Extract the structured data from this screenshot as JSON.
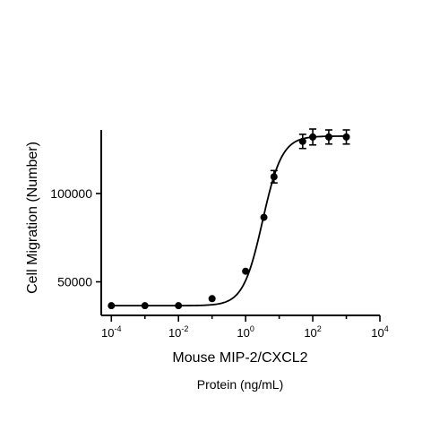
{
  "chart_data": {
    "type": "scatter",
    "title": "Mouse MIP-2/CXCL2",
    "xlabel": "Protein (ng/mL)",
    "ylabel": "Cell Migration (Number)",
    "x_scale": "log10",
    "xlim": [
      5e-05,
      10000
    ],
    "ylim": [
      31000,
      136000
    ],
    "x_ticks": [
      {
        "value": 0.0001,
        "base": "10",
        "exp": "-4"
      },
      {
        "value": 0.01,
        "base": "10",
        "exp": "-2"
      },
      {
        "value": 1,
        "base": "10",
        "exp": "0"
      },
      {
        "value": 100,
        "base": "10",
        "exp": "2"
      },
      {
        "value": 10000,
        "base": "10",
        "exp": "4"
      }
    ],
    "y_ticks": [
      {
        "value": 50000,
        "label": "50000"
      },
      {
        "value": 100000,
        "label": "100000"
      }
    ],
    "points": [
      {
        "x": 0.0001,
        "y": 36500,
        "err": 0
      },
      {
        "x": 0.001,
        "y": 36500,
        "err": 0
      },
      {
        "x": 0.01,
        "y": 36500,
        "err": 0
      },
      {
        "x": 0.1,
        "y": 40500,
        "err": 0
      },
      {
        "x": 1,
        "y": 56000,
        "err": 0
      },
      {
        "x": 3.5,
        "y": 86500,
        "err": 0
      },
      {
        "x": 7,
        "y": 109500,
        "err": 3500
      },
      {
        "x": 50,
        "y": 129500,
        "err": 4000
      },
      {
        "x": 100,
        "y": 132000,
        "err": 4500
      },
      {
        "x": 300,
        "y": 132000,
        "err": 4000
      },
      {
        "x": 1000,
        "y": 132000,
        "err": 4000
      }
    ],
    "fit": {
      "bottom": 36500,
      "top": 132500,
      "ec50": 3.2,
      "hill": 1.5
    },
    "grid": false,
    "legend": "none"
  }
}
